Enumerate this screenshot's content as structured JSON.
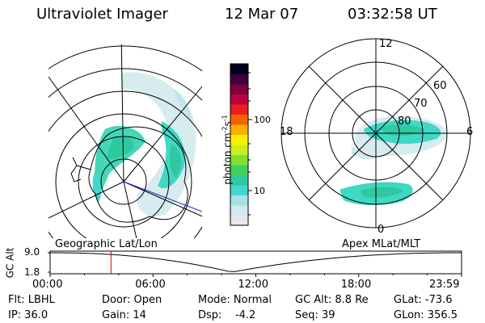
{
  "header": {
    "instrument": "Ultraviolet Imager",
    "date": "12 Mar 07",
    "time": "03:32:58 UT"
  },
  "colorbar": {
    "unit_label": "photon cm",
    "unit_sup1": "-2",
    "unit_mid": "s",
    "unit_sup2": "-1",
    "tick_100": "100",
    "tick_10": "10",
    "colors": [
      "#e6e6e6",
      "#cfe9ef",
      "#a6e0e8",
      "#40d8d0",
      "#30c8a0",
      "#40d060",
      "#80e030",
      "#c8f020",
      "#f8f000",
      "#f8b000",
      "#f86000",
      "#e82020",
      "#c00040",
      "#80003a",
      "#400040",
      "#000020"
    ]
  },
  "left_map": {
    "label": "Geographic Lat/Lon"
  },
  "right_map": {
    "label": "Apex MLat/MLT",
    "mlt_12": "12",
    "mlt_6": "6",
    "mlt_18": "18",
    "mlt_0": "0",
    "lat_60": "60",
    "lat_70": "70",
    "lat_80": "80"
  },
  "altitude_plot": {
    "axis_label": "GC Alt",
    "y_top": "9.0",
    "y_bottom": "1.8",
    "x_ticks": [
      "00:00",
      "06:00",
      "12:00",
      "18:00",
      "23:59"
    ],
    "current_time_hours": 3.55,
    "line_color": "#000000",
    "marker_color": "#cc0000"
  },
  "status": {
    "flt": "Flt: LBHL",
    "ip": "IP: 36.0",
    "door": "Door: Open",
    "gain": "Gain: 14",
    "mode": "Mode: Normal",
    "dsp": "Dsp:    -4.2",
    "gcalt": "GC Alt: 8.8 Re",
    "seq": "Seq: 39",
    "glat": "GLat: -73.6",
    "glon": "GLon: 356.5"
  }
}
